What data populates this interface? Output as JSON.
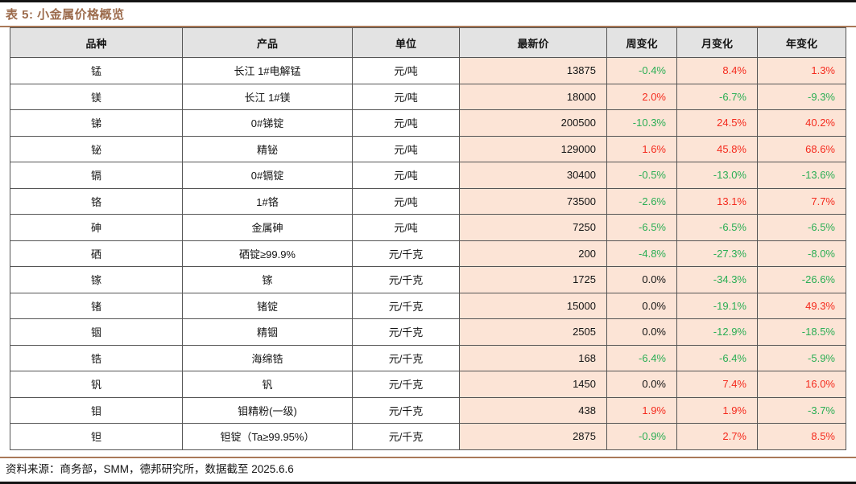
{
  "page": {
    "title": "表 5: 小金属价格概览",
    "footer": "资料来源：商务部，SMM，德邦研究所，数据截至 2025.6.6"
  },
  "colors": {
    "title_brown": "#9C6B4C",
    "divider_brown": "#A97958",
    "header_bg": "#E3E3E3",
    "value_bg": "#FCE4D6",
    "up_red": "#F42A1D",
    "down_green": "#2AAE54"
  },
  "table": {
    "headers": [
      "品种",
      "产品",
      "单位",
      "最新价",
      "周变化",
      "月变化",
      "年变化"
    ],
    "rows": [
      {
        "variety": "锰",
        "product": "长江 1#电解锰",
        "unit": "元/吨",
        "price": "13875",
        "week": "-0.4%",
        "month": "8.4%",
        "year": "1.3%"
      },
      {
        "variety": "镁",
        "product": "长江 1#镁",
        "unit": "元/吨",
        "price": "18000",
        "week": "2.0%",
        "month": "-6.7%",
        "year": "-9.3%"
      },
      {
        "variety": "锑",
        "product": "0#锑锭",
        "unit": "元/吨",
        "price": "200500",
        "week": "-10.3%",
        "month": "24.5%",
        "year": "40.2%"
      },
      {
        "variety": "铋",
        "product": "精铋",
        "unit": "元/吨",
        "price": "129000",
        "week": "1.6%",
        "month": "45.8%",
        "year": "68.6%"
      },
      {
        "variety": "镉",
        "product": "0#镉锭",
        "unit": "元/吨",
        "price": "30400",
        "week": "-0.5%",
        "month": "-13.0%",
        "year": "-13.6%"
      },
      {
        "variety": "铬",
        "product": "1#铬",
        "unit": "元/吨",
        "price": "73500",
        "week": "-2.6%",
        "month": "13.1%",
        "year": "7.7%"
      },
      {
        "variety": "砷",
        "product": "金属砷",
        "unit": "元/吨",
        "price": "7250",
        "week": "-6.5%",
        "month": "-6.5%",
        "year": "-6.5%"
      },
      {
        "variety": "硒",
        "product": "硒锭≥99.9%",
        "unit": "元/千克",
        "price": "200",
        "week": "-4.8%",
        "month": "-27.3%",
        "year": "-8.0%"
      },
      {
        "variety": "镓",
        "product": "镓",
        "unit": "元/千克",
        "price": "1725",
        "week": "0.0%",
        "month": "-34.3%",
        "year": "-26.6%"
      },
      {
        "variety": "锗",
        "product": "锗锭",
        "unit": "元/千克",
        "price": "15000",
        "week": "0.0%",
        "month": "-19.1%",
        "year": "49.3%"
      },
      {
        "variety": "铟",
        "product": "精铟",
        "unit": "元/千克",
        "price": "2505",
        "week": "0.0%",
        "month": "-12.9%",
        "year": "-18.5%"
      },
      {
        "variety": "锆",
        "product": "海绵锆",
        "unit": "元/千克",
        "price": "168",
        "week": "-6.4%",
        "month": "-6.4%",
        "year": "-5.9%"
      },
      {
        "variety": "钒",
        "product": "钒",
        "unit": "元/千克",
        "price": "1450",
        "week": "0.0%",
        "month": "7.4%",
        "year": "16.0%"
      },
      {
        "variety": "钼",
        "product": "钼精粉(一级)",
        "unit": "元/千克",
        "price": "438",
        "week": "1.9%",
        "month": "1.9%",
        "year": "-3.7%"
      },
      {
        "variety": "钽",
        "product": "钽锭（Ta≥99.95%）",
        "unit": "元/千克",
        "price": "2875",
        "week": "-0.9%",
        "month": "2.7%",
        "year": "8.5%"
      }
    ]
  }
}
